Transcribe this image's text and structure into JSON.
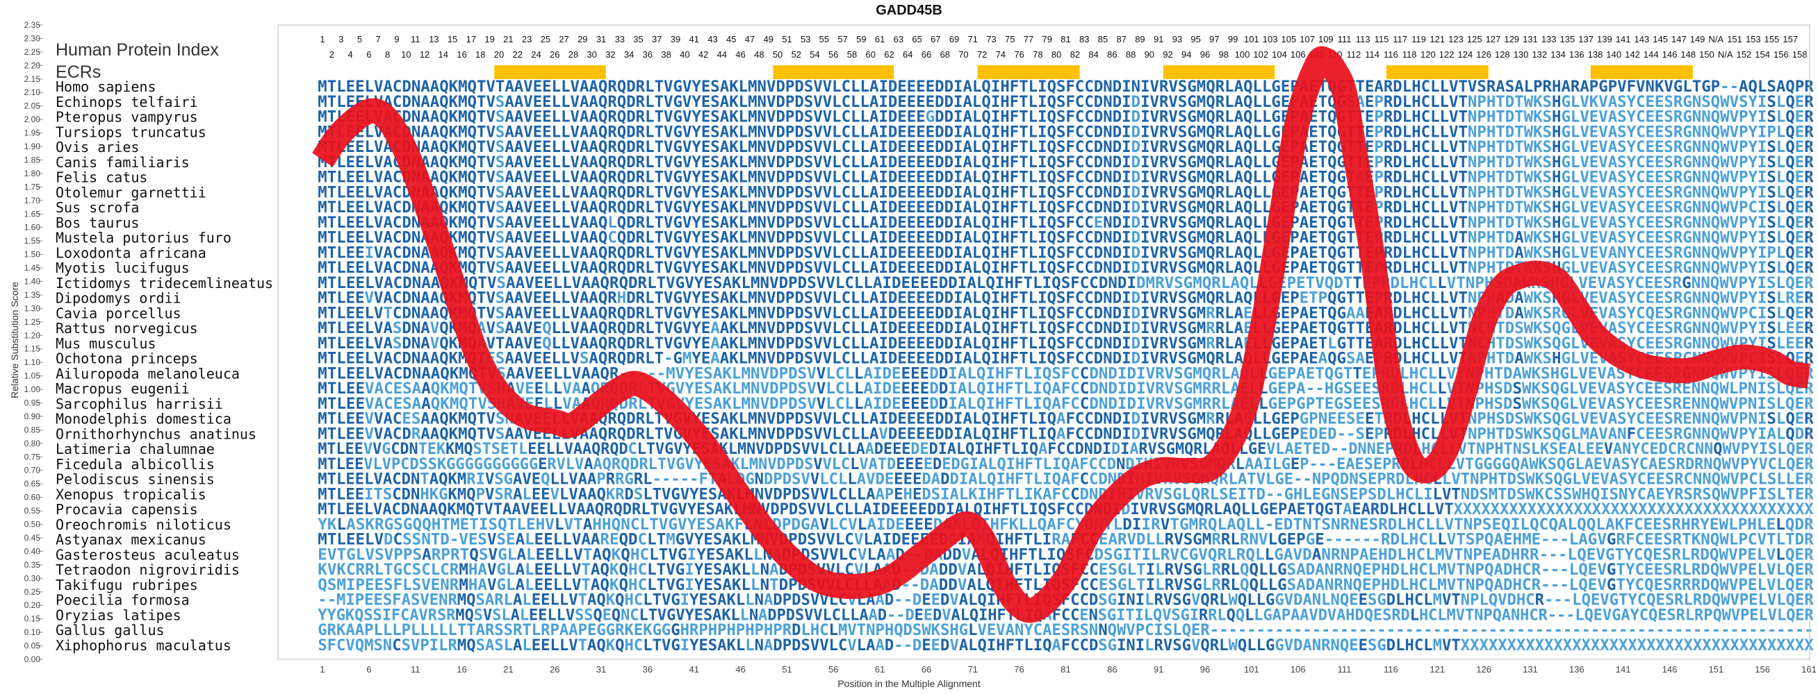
{
  "chart_data": {
    "type": "line",
    "title": "GADD45B",
    "xlabel": "Position in the Multiple Alignment",
    "ylabel": "Relative Substitution Score",
    "xlim": [
      1,
      161
    ],
    "ylim": [
      0.0,
      2.35
    ],
    "ytick_step": 0.05,
    "grid": false,
    "line_color": "#e8101c",
    "index_label": "Human Protein Index",
    "ecr_label": "ECRs",
    "ecr_color": "#ffc000",
    "ecrs": [
      [
        20,
        31
      ],
      [
        50,
        62
      ],
      [
        72,
        82
      ],
      [
        92,
        103
      ],
      [
        116,
        126
      ],
      [
        138,
        148
      ]
    ],
    "x_ticks": [
      1,
      6,
      11,
      16,
      21,
      26,
      31,
      36,
      41,
      46,
      51,
      56,
      61,
      66,
      71,
      76,
      81,
      86,
      91,
      96,
      101,
      106,
      111,
      116,
      121,
      126,
      131,
      136,
      141,
      146,
      151,
      156,
      161
    ],
    "protein_index_odd": [
      "1",
      "3",
      "5",
      "7",
      "9",
      "11",
      "13",
      "15",
      "17",
      "19",
      "21",
      "23",
      "25",
      "27",
      "29",
      "31",
      "33",
      "35",
      "37",
      "39",
      "41",
      "43",
      "45",
      "47",
      "49",
      "51",
      "53",
      "55",
      "57",
      "59",
      "61",
      "63",
      "65",
      "67",
      "69",
      "71",
      "73",
      "75",
      "77",
      "79",
      "81",
      "83",
      "85",
      "87",
      "89",
      "91",
      "93",
      "95",
      "97",
      "99",
      "101",
      "103",
      "105",
      "107",
      "109",
      "111",
      "113",
      "115",
      "117",
      "119",
      "121",
      "123",
      "125",
      "127",
      "129",
      "131",
      "133",
      "135",
      "137",
      "139",
      "141",
      "143",
      "145",
      "147",
      "149",
      "N/A",
      "151",
      "153",
      "155",
      "157"
    ],
    "protein_index_even": [
      "2",
      "4",
      "6",
      "8",
      "10",
      "12",
      "14",
      "16",
      "18",
      "20",
      "22",
      "24",
      "26",
      "28",
      "30",
      "32",
      "34",
      "36",
      "38",
      "40",
      "42",
      "44",
      "46",
      "48",
      "50",
      "52",
      "54",
      "56",
      "58",
      "60",
      "62",
      "64",
      "66",
      "68",
      "70",
      "72",
      "74",
      "76",
      "78",
      "80",
      "82",
      "84",
      "86",
      "88",
      "90",
      "92",
      "94",
      "96",
      "98",
      "100",
      "102",
      "104",
      "106",
      "108",
      "110",
      "112",
      "114",
      "116",
      "118",
      "120",
      "122",
      "124",
      "126",
      "128",
      "130",
      "132",
      "134",
      "136",
      "138",
      "140",
      "142",
      "144",
      "146",
      "148",
      "150",
      "N/A",
      "152",
      "154",
      "156",
      "158"
    ],
    "x": [
      1,
      3,
      6,
      8,
      10,
      12,
      14,
      18,
      22,
      26,
      28,
      31,
      33,
      35,
      38,
      42,
      46,
      50,
      54,
      58,
      62,
      66,
      70,
      72,
      74,
      76,
      78,
      81,
      84,
      88,
      91,
      94,
      97,
      100,
      102,
      104,
      106,
      108,
      109,
      110,
      111,
      112,
      114,
      116,
      118,
      120,
      122,
      124,
      126,
      128,
      130,
      132,
      134,
      136,
      138,
      141,
      144,
      148,
      151,
      154,
      157,
      159,
      161
    ],
    "y": [
      1.85,
      1.95,
      2.03,
      2.0,
      1.88,
      1.7,
      1.5,
      1.1,
      0.92,
      0.88,
      0.87,
      0.95,
      1.0,
      1.02,
      0.95,
      0.8,
      0.6,
      0.42,
      0.3,
      0.27,
      0.3,
      0.4,
      0.5,
      0.45,
      0.3,
      0.2,
      0.19,
      0.3,
      0.5,
      0.65,
      0.7,
      0.7,
      0.72,
      0.9,
      1.2,
      1.6,
      2.0,
      2.2,
      2.22,
      2.18,
      2.1,
      1.9,
      1.5,
      1.0,
      0.75,
      0.7,
      0.78,
      1.0,
      1.25,
      1.38,
      1.42,
      1.43,
      1.4,
      1.3,
      1.2,
      1.12,
      1.08,
      1.07,
      1.1,
      1.12,
      1.1,
      1.06,
      1.05
    ],
    "species": [
      "Homo sapiens",
      "Echinops telfairi",
      "Pteropus vampyrus",
      "Tursiops truncatus",
      "Ovis aries",
      "Canis familiaris",
      "Felis catus",
      "Otolemur garnettii",
      "Sus scrofa",
      "Bos taurus",
      "Mustela putorius furo",
      "Loxodonta africana",
      "Myotis lucifugus",
      "Ictidomys tridecemlineatus",
      "Dipodomys ordii",
      "Cavia porcellus",
      "Rattus norvegicus",
      "Mus musculus",
      "Ochotona princeps",
      "Ailuropoda melanoleuca",
      "Macropus eugenii",
      "Sarcophilus harrisii",
      "Monodelphis domestica",
      "Ornithorhynchus anatinus",
      "Latimeria chalumnae",
      "Ficedula albicollis",
      "Pelodiscus sinensis",
      "Xenopus tropicalis",
      "Procavia capensis",
      "Oreochromis niloticus",
      "Astyanax mexicanus",
      "Gasterosteus aculeatus",
      "Tetraodon nigroviridis",
      "Takifugu rubripes",
      "Poecilia formosa",
      "Oryzias latipes",
      "Gallus gallus",
      "Xiphophorus maculatus"
    ],
    "sequences": [
      "MTLEELVACDNAAQKMQTVTAAVEELLVAAQRQDRLTVGVYESAKLMNVDPDSVVLCLLAIDEEEEDDIALQIHFTLIQSFCCDNDINIVRVSGMQRLAQLLGEPAETQGTTEARDLHCLLVTVSRASALPRHARAPGPVFVNKVGLTGP--AQLSAQPR",
      "MTLEELVACDNAAQKMQTVSAAVEELLVAAQRQDRLTVGVYESAKLMNVDPDSVVLCLLAIDEEEEDDIALQIHFTLIQSFCCDNDIDIVRVSGMQRLAQLLGEPAETQGSAEPRDLHCLLVTNPHTDTWKSHGLVKVASYCEESRGNSQWVSYISLQER",
      "MTLEELVACDNAAQKMQTVSAAVEELLVAAQRQDRLTVGVYESAKLMNVDPDSVVLCLLAIDEEEGDDIALQIHFTLIQSFCCDNDIDIVRVSGMQRLAQLLGEPAETQGTTEPRDLHCLLVTNPHTDTWKSHGLVEVASYCEESRGNNQWVPYISLQER",
      "MTLEELVACDNAAQKMQTVSAAVEELLVAAQRQDRLTVGVYESAKLMNVDPDSVVLCLLAIDEEEEDDIALQIHFTLIQSFCCDNDIDIVRVSGMQRLAQLLGEPAETQGTTEPRDLHCLLVTNPHTDTWKSHGLVEVASYCEESRGNNQWVPYIPLQER",
      "MTLEELVACDNAAQKMQTVSAAVEELLVAAQRQDRLTVGVYESAKLMNVDPDSVVLCLLAIDEEEEDDIALQIHFTLIQSFCCDNDIDIVRVSGMQRLAQLLGEPAETQGTTEPRDLHCLLVTNPHTDTWKSHGLVEVASYCEESRGNNQWVPYISLQER",
      "MTLEELVACDNAAQKMQTVSAAVEELLVAAQRQDRLTVGVYESAKLMNVDPDSVVLCLLAIDEEEEDDIALQIHFTLIQSFCCDNDIDIVRVSGMQRLAQLLGEPAETQGTTEPRDLHCLLVTNPHTDTWKSHGLVEVASYCEESRGNNQWVPYISLQER",
      "MTLEELVACDNAAQKMQTVSAAVEELLVAAQRQDRLTVGVYESAKLMNVDPDSVVLCLLAIDEEEEDDIALQIHFTLIQSFCCDNDIDIVRVSGMQRLAQLLGEPAETQGTAEPRDLHCLLVTNPHTDTWKSHGLVEVASYCEESRGNNQWVPYISLQER",
      "MTLEELVACDNAAQKMQTVSAAVEELLVAAQRQDRLTVGVYESAKLMNVDPDSVVLCLLAIDEEEEDDIALQIHFTLIQSFCCDNDIDIVRVSGMQRLAQLLGEPAETQGTTEPRDLHCLLVTNPHTDTWKSHGLVEVASYCEESRGNNQWVPYISLQER",
      "MTLEELVACDNAAQKMQTVSAAVEELLVAAQRQDRLTVGVYESAKLMNVDPDSVVLCLLAIDEEEEDDIALQIHFTLIQSFCCDNDIDIVRVSGMQRLAQLLGEPAETQGTTEPRDLHCLLVTNPHTDTWKSHGLVEVASYCEESRGNNQWVPCISLQER",
      "MTLEELVACDNAAQKMQTVSAAVEELLVAAQLQDRLTVGVYESAKLMNVDPDSVVLCLLAIDEEEEDDIALQIHFTLIQSFCCENDIDIVRVSGMQRLAQLLGEPAETQGTTEPRDLHCLLVTNPHTDTWKSHGLVEVASYCEESRGNNQWVPYISLQER",
      "MTLEELVACDNAAQKMQTVSAAVEELLVAAQCQDRLTVGVYESAKLMNVDPDSVVLCLLAIDEEEEDDIALQIHFTLIQSFCCDNDIDIVRVSGMQRLAQLLGEPAETQGTTEPRDLHCLLVTNPHTDAWKSHGLVEVASYCEESRGNNQWVPYISLQER",
      "MTLEEIVACDNAAQKMQTVSAAVEELLVAAQRQDRLTVGVYESAKLMNVDPDSVVLCLLAIDEEEEDDIALQIHFTLIQSFCCDNDIDIVRVSGMQRLAQLLGEPAETQGTTEPRDLHCLLVTNPHTDAWKSHGLVEVANYCEESRGNNQWVPYIPLQER",
      "MTLEELVACDNAAQKMQTVSAAVEELLVAAQRQDRLTVGVYESAKLMNVDPDSVVLCLLAIDEEEEDDIALQIHFTLIQSFCCDNDIDIVRVSGMQRLAQLLGEPAETQGTTEPRDLHCLLVTNPHTDTWKSHGLVEVASYCEESRGNNQWVPYISLQER",
      "MTLEELVACDNAAQKMQTVSAAVEELLVAAQRQDRLTVGVYESAKLMNVDPDSVVLCLLAIDEEEEDDIALQIHFTLIQSFCCDNDIDMRVSGMQRLAQLLGEPETVQDTTEPRDLHCLLVTNPHSDAWKSHGLVEVASYCEESRGNNQWVPYISLQER",
      "MTLEEVVACDNAAQKMQTVSAAVEELLVAAQRHDRLTVGVYESAKLMNVDPDSVVLCLLAIDEEEEDDIALQIHFTLIQSFCCDNDIDIVRVSGMQRLAQLLGEPETPQGTTEPRDLHCLLVTNPHADAWKSHGLVEVASYCEESRGNNQWVPYISLRER",
      "MTLEELVTCDNAAQKMQTVSAAVEELLVAAQRQDRLTVGVYESAKLMNVDPDSVVLCLLAIDEEEEDDIALQIHFTLIQSFCCDNDIDIVRVSGMRRLAELLGEPAETQGAAEARDLHCLLVTNPHTDAWKSRGLVEVASYCQESRGNNQWVPCISLQER",
      "MTLEELVASDNAVQKMQAVSAAVEQLLVAAQRQDRLTVGVYEAAKLMNVDPDSVVLCLLAIDEEEEDDIALQIHFTLIQSFCCDNDIDIVRVSGMRRLAELLGEPAETQGTTEARDLHCLLVTNCHTDSWKSQGLVEVASYCEESRGNNQWVPYISLEER",
      "MTLEELVASDNAVQKMQAVTAAVEQLLVAAQRQDRLTVGVYEAAKLMNVDPDSVVLCLLAIDEEEEDDIALQIHFTLIQSFCCDNDIDIVRVSGMRRLAELLGEPAETLGTTEARDLHCLLVTNCHTDSWKSQGLVEVASYCEESRGNNQWVPYISLEER",
      "MTLEELVACDNAAQKMQTESAAVEELLVSAQRQDRLT-GMYEAAKLMNVDPDSVVLCLLAIDEEEEDDIALQIHFTLIQSFCCDNDIDIVRVSGMQRLAQLLGEPAEAQGSAEPRDLHCLLVTNPHTDAWKSHGLVEVASYCEESRGNNQWVPCISLQER",
      "MTLEELVACDNAAQKMQTVSAAVEELLVAAQR-----MVYESAKLMNVDPDSVVLCLLAIDEEEEDDIALQIHFTLIQSFCCDNDIDIVRVSGMQRLAQLLGEPAETQGTTEPRDLHCLLVTNPHTDAWKSHGLVEVASYCEESRGNNQWVPYISLQER",
      "MTLEEVACESAAQKMQTVSHAVEELLVAAQRQDRLTVGVYESAKLMNVDPDSVVLCLLAIDEEEEDDIALQIHFTLIQAFCCDNDIDIVRVSGMRRLAELLGEPA--HGSEESRDLHCLLVTNPHSDSWKSQGLVEVASYCEESRENNQWLPNISLQER",
      "MTLEEVACESAAQKMQTVSHAVEELLVAAQRQDRLTVGVYESAKLMNVDPDSVVLCLLAIDEEEEDDIALQIHFTLIQAFCCDNDIDIVRVSGMRRLAELLGEPGPTEGSEESRDLHCLLVTNPHSDSWKSQGLVEVASYCEESRENNQWVPNISLQER",
      "MTLEEVVACESAAQKMQTVSNAVEELLVAAQRQDRLTVGVYESAKLMNVDPDSVVLCLLAIDEEEEDDIALQIHFTLIQAFCCDNDIDIVRVSGMRRLAELLGEPGPNEESEETRDLHCLLVTNPHSDSWKSQGLVEVASYCEESRENNQWVPNISLQER",
      "MTLEEVVACDRAAQKMQTVSAAVEELLVAAQRQDRLTVGVYESAKLMNVDPDSVVLCLLAVDEEEEDDIALQIHFTLIQAFCCDNDIDIVRVSGMQRLAQLLGEPEDED--SEPRDLHCLLVTNPHTDSWKSQGLMAVANFCEESRGNNQWVPYIALQDR",
      "MTLEEVVGCDNTEKKMQSTSETLEELLVAAQRQDCLTVGVYESAKLMNVDPDSVVLCLLAADEEEDEDIALQIHFTLIQAFCCDNDIDIARVSGMQRLAQLLGEVLAETED--DNNEPRDLHCLLVTNPHTNSLKSEALEEVANYCEDCRCNNQWVPYISLQER",
      "MTLEEVLVPCDSSKGGGGGGGGGGERVLVAAQRQDRLTVGVYESAKLMNVDPDSVVLCLVATDEEEEDEDGIALQIHFTLIQAFCCDNDIHIVRVSGMQRLAAILGEP---EAESEPRDLHCLLVTGGGGQAWKSQGLAEVASYCAESRDRNQWVPYVCLQER",
      "MTLEELVACDNTAQKMRIVSGAVEQLLVAAPRRGRL-----FTALDGNDPDSVVLCLLAVDEEEEDADDIALQIHFTLIQAFCCDNDIHIVRVSGMQRLATVLGE--NPQDNSEPRDLHCLLVTNPHTDSWKSQGLVEVASYCEESRCNNQWVPCLSLLER",
      "MTLEEITSCDNHKGKMQPVSRALEEVLVAAQKRDSLTVGVYESAKLMNVDPDSVVLCLLAAPEHEDSIALKIHFTLIKAFCCDNDIHIVRVSGLQRLSEITD--GHLEGNSEPSDLHCLILVTNDSMTDSWKCSSWHQISNYCAEYRSRSQWVPFISLTER",
      "MTLEELVACDNAAQKMQTVTAAVEELLVAAQRQDRLTVGVYESAKLMNVDPDSVVLCLLAIDEEEEDDIALQIHFTLIQSFCCDNDIDIVRVSGMQRLAQLLGEPAETQGTAEARDLHCLLVTXXXXXXXXXXXXXXXXXXXXXXXXXXXXXXXXXXXXXXX",
      "YKLASKRGSGQQHTMETISQTLEHVLVTAHHQNCLTVGVYESAKFLNLDPDGAVLCVLAIDEEEEDAALQIHFKLLQAFCYDNYLDIIRVTGMRQLAQLL-EDTNTSNRNESRDLHCLLVTNPSEQILQCQALQQLAKFCEESRHRYEWLPHLELQDR",
      "MTLEELVDCSSNTD-VESVSEALEELLVAAREQDCLTMGVYESAKLMNVDPDSVVLCVLAIDEEEEDGIAMQIHFTLIRAFCCEARVDLLRVSGMRRLRNVLGEPGE------RDLHCLLVTSPQAEHME---LAGVGRFCEESRTKNQWLPCVTLTDR",
      "EVTGLVSVPPSARPRTQSVGLALEELLVTAQKQHCLTVGIYESAKLLNADPDSVVLCVLAAD--DADDVALQIHFTLIQSFCDSGITILRVCGVQRLRQLLGAVDANRNPAEHDLHCLMVTNPEADHRR---LQEVGTYCQESRLRDQWVPELVLQER",
      "KVKCRRLTGCSCLCRMHAVGLALEELLVTAQKQHCLTVGIYESAKLLNADPDSVVLCVLAAD--DADDVALQIHFTLIQSFCCESGLTILRVSGLRRLQQLLGSADANRNQEPHDLHCLMVTNPQADHCR---LQEVGTYCEESRLRDQWVPELVLQER",
      "QSMIPEESFLSVENRMHAVGLALEELLVTAQKQHCLTVGIYESAKLLNTDPDSVVLCLLAAD--DADDVALQIHFTLIQSFCCESGLTILRVSGLRRLQQLLGSADANRNQEPHDLHCLMVTNPQADHCR---LQEVGTYCQESRRRDQWVPELVLQER",
      "--MIPEESFASVENRMQSARLALEELLVTAQKQHCLTVGIYESAKLLNADPDSVVLCVLAAD--DEEDVALQIHFTLIQSFCCDSGINILRVSGVQRLWQLLGGVDANLNQEESGDLHCLMVTNPLQVDHCR---LQEVGTYCQESRLRDQWVPELVLQER",
      "YYGKQSSIFCAVRSRMQSVSLALEELLVSSQEQNCLTVGVYESAKLLNADPDSVVLCLLAAD--DEEDVALQIHFTLIQAFCCENSGITILQVSGIRRLQQLLGAPAAVDVAHDQESRDLHCLMVTNPQANHCR---LQEVGAYCQESRLRPQWVPELVLQER",
      "GRKAAPLLLPLLLLLTTARSSRTLRPAAPEGGRKEKGGGHRPHPHPHPHPRDLHCLMVTNPHQDSWKSHGLVEVANYCAESRSNNQWVPCISLQER-----------------------------------------------------------------",
      "SFCVQMSNCSVPILRMQSASLALEELLVTAQKQHCLTVGIYESAKLLNADPDSVVLCVLAAD--DEEDVALQIHFTLIQAFCCDSGINILRVSGVQRLWQLLGGVDANRNQEESGDLHCLMVTXXXXXXXXXXXXXXXXXXXXXXXXXXXXXXXXXXXXXX"
    ]
  }
}
